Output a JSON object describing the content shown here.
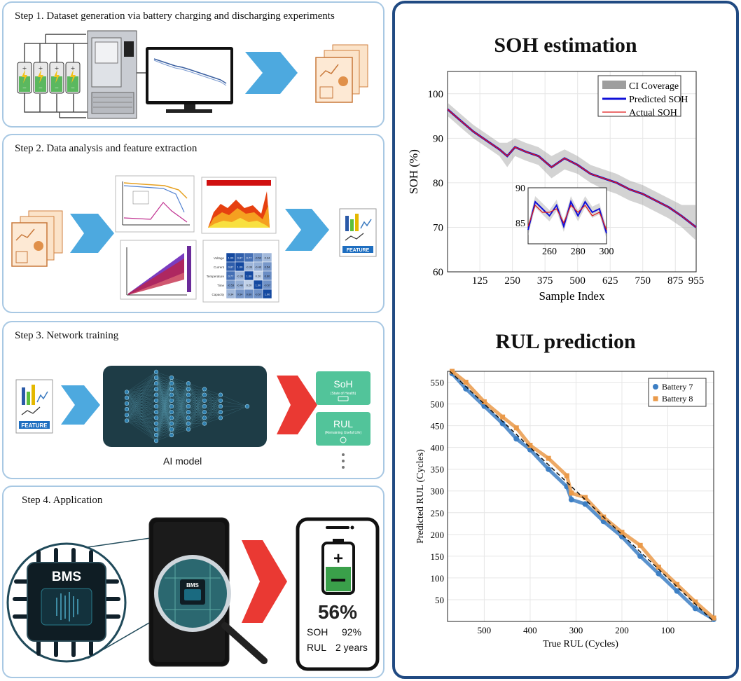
{
  "steps": {
    "step1_title": "Step 1. Dataset generation via battery charging and discharging experiments",
    "step2_title": "Step 2. Data analysis and feature extraction",
    "step3_title": "Step 3. Network training",
    "step4_title": "Step 4. Application",
    "feature_label": "FEATURE",
    "ai_model_caption": "AI model",
    "soh_card_title": "SoH",
    "soh_card_sub": "(State of Health)",
    "rul_card_title": "RUL",
    "rul_card_sub": "(Remaining Useful Life)",
    "bms_label": "BMS",
    "phone_percent": "56%",
    "phone_soh_label": "SOH",
    "phone_soh_value": "92%",
    "phone_rul_label": "RUL",
    "phone_rul_value": "2 years",
    "heatmap_rows": [
      "Voltage",
      "Current",
      "Temperature",
      "Time",
      "Capacity"
    ],
    "heatmap_values": [
      [
        "1.00",
        "0.87",
        "0.77",
        "-0.53",
        "0.34"
      ],
      [
        "0.87",
        "1.00",
        "-0.36",
        "-0.40",
        "0.54"
      ],
      [
        "0.77",
        "-0.36",
        "1.00",
        "0.20",
        "0.60"
      ],
      [
        "-0.53",
        "-0.40",
        "0.20",
        "1.00",
        "-0.57"
      ],
      [
        "0.34",
        "0.54",
        "0.60",
        "-0.57",
        "1.00"
      ]
    ]
  },
  "results": {
    "soh_title": "SOH estimation",
    "rul_title": "RUL prediction"
  },
  "colors": {
    "panel_border": "#a8c8e3",
    "results_border": "#204a82",
    "arrow_blue": "#3aa0dc",
    "arrow_red": "#e8231d",
    "predicted": "#1010d8",
    "actual": "#e01818",
    "battery7": "#3d7fc4",
    "battery8": "#ea9a4a",
    "card_green": "#52c49a"
  },
  "chart_data": [
    {
      "type": "line",
      "title": "SOH estimation",
      "xlabel": "Sample Index",
      "ylabel": "SOH (%)",
      "xlim": [
        1,
        955
      ],
      "ylim": [
        60,
        105
      ],
      "xticks": [
        125,
        250,
        375,
        500,
        625,
        750,
        875,
        955
      ],
      "yticks": [
        60,
        70,
        80,
        90,
        100
      ],
      "grid": true,
      "legend_position": "top-right",
      "series": [
        {
          "name": "CI Coverage",
          "x": [
            1,
            50,
            100,
            150,
            200,
            230,
            260,
            300,
            350,
            400,
            450,
            500,
            550,
            600,
            650,
            700,
            750,
            800,
            850,
            900,
            955
          ],
          "lower": [
            95,
            92.5,
            90,
            88,
            86,
            83.5,
            86,
            85,
            84,
            81,
            83,
            82,
            80,
            78.5,
            77.5,
            76,
            75,
            73.5,
            72,
            70,
            67
          ],
          "upper": [
            98,
            95.5,
            93,
            91,
            89,
            89,
            90,
            89,
            88,
            86,
            87.5,
            86,
            84,
            83,
            82,
            80.5,
            79.5,
            78,
            76.5,
            75,
            75
          ]
        },
        {
          "name": "Predicted SOH",
          "x": [
            1,
            50,
            100,
            150,
            200,
            230,
            260,
            300,
            350,
            400,
            450,
            500,
            550,
            600,
            650,
            700,
            750,
            800,
            850,
            900,
            955
          ],
          "values": [
            96.5,
            94,
            91.5,
            89.5,
            87.5,
            86,
            88,
            87,
            86,
            83.5,
            85.5,
            84,
            82,
            81,
            80,
            78.5,
            77.5,
            76,
            74.5,
            72.5,
            70
          ]
        },
        {
          "name": "Actual SOH",
          "x": [
            1,
            50,
            100,
            150,
            200,
            230,
            260,
            300,
            350,
            400,
            450,
            500,
            550,
            600,
            650,
            700,
            750,
            800,
            850,
            900,
            955
          ],
          "values": [
            96.5,
            94,
            91.5,
            89.5,
            87.5,
            86,
            88,
            87,
            86,
            83.5,
            85.5,
            84,
            82,
            81,
            80,
            78.5,
            77.5,
            76,
            74.5,
            72.5,
            70
          ]
        }
      ],
      "inset": {
        "xlim": [
          245,
          300
        ],
        "ylim": [
          82,
          90
        ],
        "xticks": [
          260,
          280,
          300
        ],
        "yticks": [
          85,
          90
        ],
        "x": [
          245,
          250,
          255,
          260,
          265,
          270,
          275,
          280,
          285,
          290,
          295,
          300
        ],
        "predicted": [
          84,
          88,
          87,
          86,
          87.5,
          84.5,
          88,
          86,
          88,
          86.5,
          87,
          83.5
        ],
        "actual": [
          84.5,
          87.5,
          86.5,
          86.5,
          87,
          85,
          87.5,
          86.5,
          87.5,
          86,
          86.5,
          84
        ]
      }
    },
    {
      "type": "scatter",
      "title": "RUL prediction",
      "xlabel": "True RUL (Cycles)",
      "ylabel": "Predicted RUL (Cycles)",
      "xlim": [
        580,
        0
      ],
      "ylim": [
        0,
        575
      ],
      "xticks": [
        500,
        400,
        300,
        200,
        100
      ],
      "yticks": [
        50,
        100,
        150,
        200,
        250,
        300,
        350,
        400,
        450,
        500,
        550
      ],
      "grid": true,
      "legend_position": "top-right",
      "reference_line": "y = x (dashed black)",
      "series": [
        {
          "name": "Battery 7",
          "x": [
            570,
            540,
            500,
            460,
            430,
            400,
            360,
            320,
            310,
            280,
            240,
            200,
            160,
            120,
            80,
            40,
            0
          ],
          "values": [
            570,
            535,
            495,
            455,
            420,
            395,
            350,
            310,
            280,
            270,
            230,
            195,
            150,
            110,
            70,
            30,
            5
          ]
        },
        {
          "name": "Battery 8",
          "x": [
            570,
            540,
            500,
            460,
            430,
            400,
            360,
            320,
            310,
            280,
            240,
            200,
            160,
            120,
            80,
            40,
            0
          ],
          "values": [
            575,
            550,
            505,
            470,
            445,
            405,
            375,
            335,
            295,
            285,
            240,
            205,
            175,
            125,
            85,
            45,
            8
          ]
        }
      ]
    }
  ]
}
